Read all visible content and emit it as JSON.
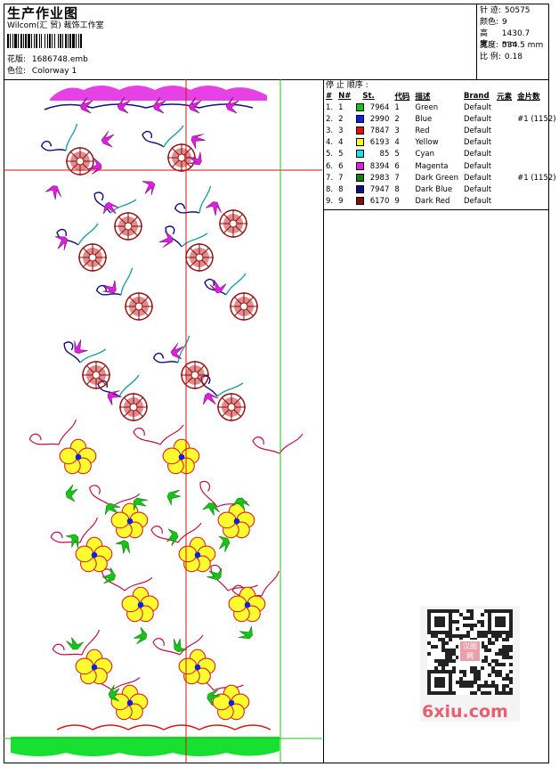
{
  "header": {
    "title": "生产作业图",
    "company": "Wilcom(汇 贸) 裁饰工作室",
    "design_file_label": "花版:",
    "design_file": "1686748.emb",
    "colorway_label": "色位:",
    "colorway": "Colorway 1"
  },
  "stats": [
    {
      "label": "针 迹:",
      "value": "50575"
    },
    {
      "label": "颜色:",
      "value": "9"
    },
    {
      "label": "高度:",
      "value": "1430.7 mm"
    },
    {
      "label": "宽度:",
      "value": "534.5 mm"
    },
    {
      "label": "比 例:",
      "value": "0.18"
    }
  ],
  "sequence": {
    "heading": "停 止 顺序 :",
    "columns": [
      "#",
      "N#",
      "St.",
      "代码",
      "描述",
      "Brand",
      "元素",
      "金片数"
    ],
    "rows": [
      {
        "idx": "1.",
        "n": "1",
        "code": "7964",
        "cn": "1",
        "desc": "Green",
        "brand": "Default",
        "sequin": "",
        "color": "#18c418"
      },
      {
        "idx": "2.",
        "n": "2",
        "code": "2990",
        "cn": "2",
        "desc": "Blue",
        "brand": "Default",
        "sequin": "#1 (1152)",
        "color": "#1020e0"
      },
      {
        "idx": "3.",
        "n": "3",
        "code": "7847",
        "cn": "3",
        "desc": "Red",
        "brand": "Default",
        "sequin": "",
        "color": "#e01010"
      },
      {
        "idx": "4.",
        "n": "4",
        "code": "6193",
        "cn": "4",
        "desc": "Yellow",
        "brand": "Default",
        "sequin": "",
        "color": "#ffff20"
      },
      {
        "idx": "5.",
        "n": "5",
        "code": "85",
        "cn": "5",
        "desc": "Cyan",
        "brand": "Default",
        "sequin": "",
        "color": "#20e0e0"
      },
      {
        "idx": "6.",
        "n": "6",
        "code": "8394",
        "cn": "6",
        "desc": "Magenta",
        "brand": "Default",
        "sequin": "",
        "color": "#e020e0"
      },
      {
        "idx": "7.",
        "n": "7",
        "code": "2983",
        "cn": "7",
        "desc": "Dark Green",
        "brand": "Default",
        "sequin": "#1 (1152)",
        "color": "#108010"
      },
      {
        "idx": "8.",
        "n": "8",
        "code": "7947",
        "cn": "8",
        "desc": "Dark Blue",
        "brand": "Default",
        "sequin": "",
        "color": "#101080"
      },
      {
        "idx": "9.",
        "n": "9",
        "code": "6170",
        "cn": "9",
        "desc": "Dark Red",
        "brand": "Default",
        "sequin": "",
        "color": "#801010"
      }
    ]
  },
  "watermark": {
    "text": "6xiu.com",
    "seal": "汉图网"
  }
}
